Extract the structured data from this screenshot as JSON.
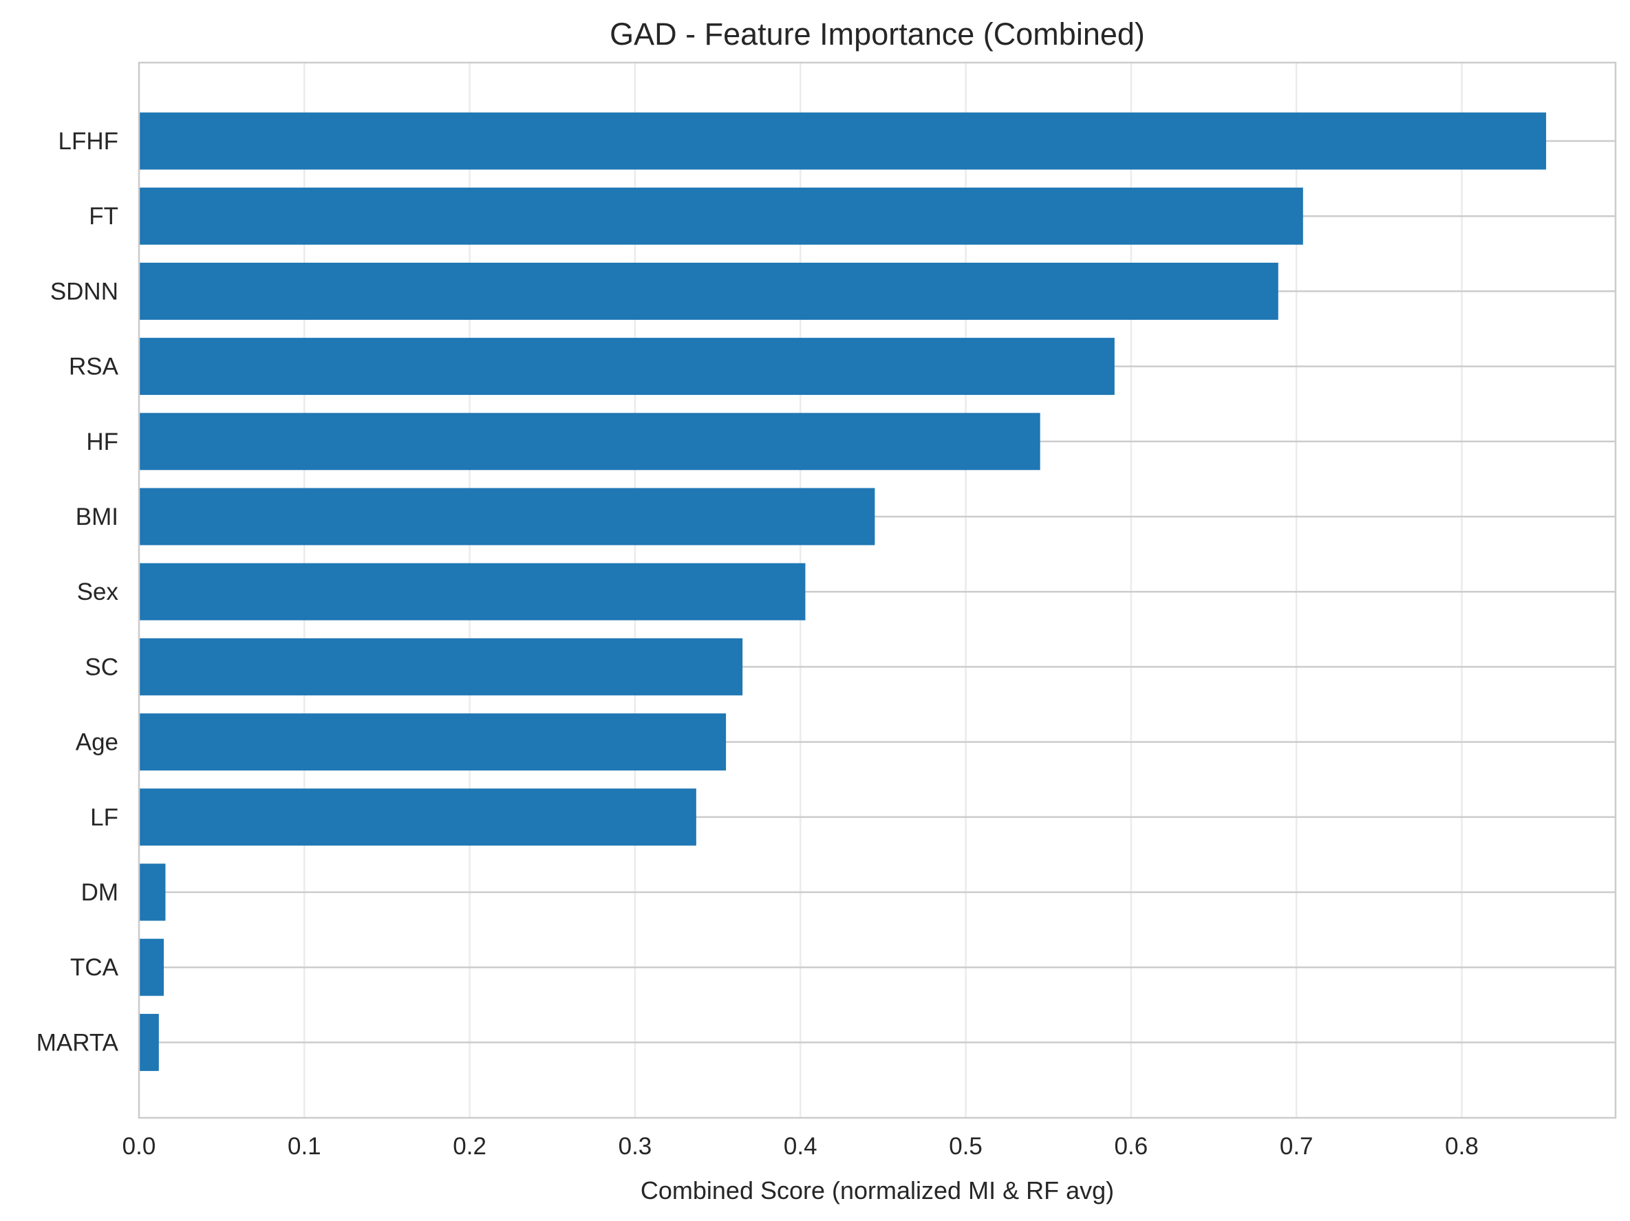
{
  "colors": {
    "bar": "#1f77b4",
    "grid_vertical": "#ebebeb",
    "grid_horizontal": "#cccccc",
    "frame": "#cccccc",
    "text": "#262626"
  },
  "chart_data": {
    "type": "bar",
    "orientation": "horizontal",
    "title": "GAD - Feature Importance (Combined)",
    "xlabel": "Combined Score (normalized MI & RF avg)",
    "ylabel": "",
    "xlim": [
      0,
      0.893
    ],
    "xticks": [
      0.0,
      0.1,
      0.2,
      0.3,
      0.4,
      0.5,
      0.6,
      0.7,
      0.8
    ],
    "xtick_labels": [
      "0.0",
      "0.1",
      "0.2",
      "0.3",
      "0.4",
      "0.5",
      "0.6",
      "0.7",
      "0.8"
    ],
    "grid": true,
    "categories": [
      "LFHF",
      "FT",
      "SDNN",
      "RSA",
      "HF",
      "BMI",
      "Sex",
      "SC",
      "Age",
      "LF",
      "DM",
      "TCA",
      "MARTA"
    ],
    "values": [
      0.851,
      0.704,
      0.689,
      0.59,
      0.545,
      0.445,
      0.403,
      0.365,
      0.355,
      0.337,
      0.016,
      0.015,
      0.012
    ]
  }
}
